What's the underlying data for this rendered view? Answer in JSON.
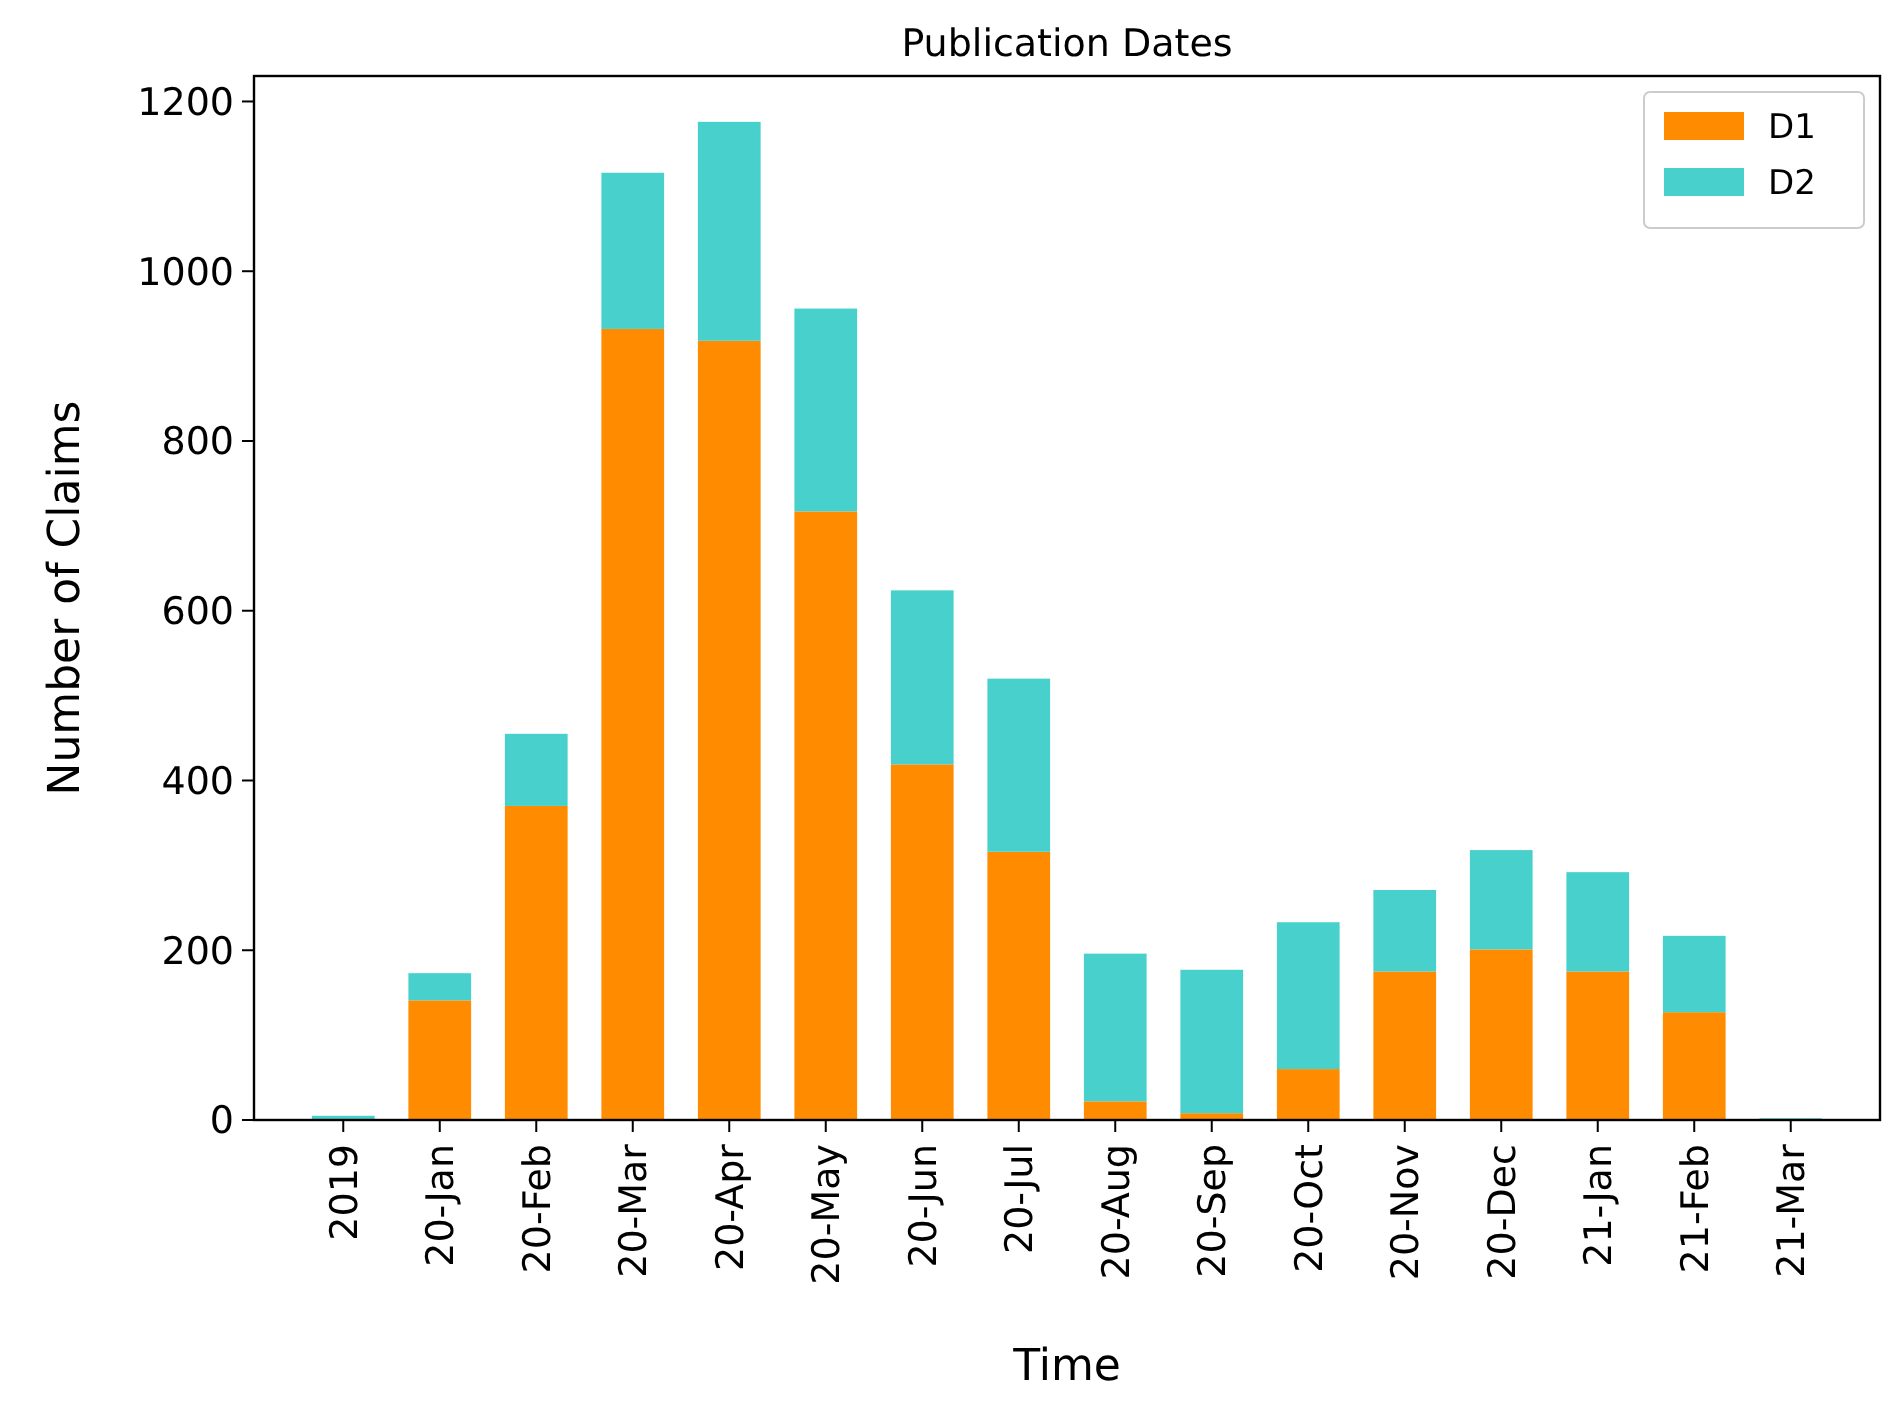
{
  "chart_data": {
    "type": "bar",
    "title": "Publication Dates",
    "xlabel": "Time",
    "ylabel": "Number of Claims",
    "categories": [
      "2019",
      "20-Jan",
      "20-Feb",
      "20-Mar",
      "20-Apr",
      "20-May",
      "20-Jun",
      "20-Jul",
      "20-Aug",
      "20-Sep",
      "20-Oct",
      "20-Nov",
      "20-Dec",
      "21-Jan",
      "21-Feb",
      "21-Mar"
    ],
    "stacked": true,
    "ylim": [
      0,
      1230
    ],
    "yticks": [
      0,
      200,
      400,
      600,
      800,
      1000,
      1200
    ],
    "legend": "top right",
    "series": [
      {
        "name": "D1",
        "color": "#ff8c00",
        "values": [
          0,
          141,
          370,
          932,
          918,
          717,
          419,
          316,
          22,
          8,
          60,
          175,
          201,
          175,
          127,
          0
        ]
      },
      {
        "name": "D2",
        "color": "#48d1cc",
        "values": [
          5,
          32,
          85,
          184,
          258,
          239,
          205,
          204,
          174,
          169,
          173,
          96,
          117,
          117,
          90,
          2
        ]
      }
    ]
  }
}
